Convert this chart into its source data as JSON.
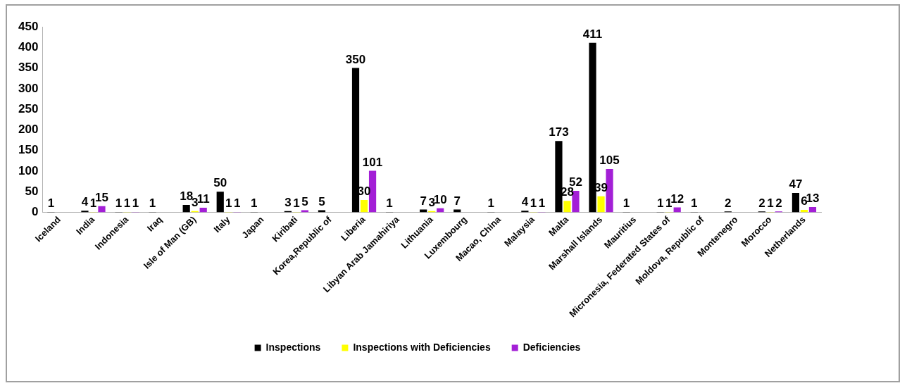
{
  "chart_data": {
    "type": "bar",
    "categories": [
      "Iceland",
      "India",
      "Indonesia",
      "Iraq",
      "Isle of Man (GB)",
      "Italy",
      "Japan",
      "Kiribati",
      "Korea,Republic of",
      "Liberia",
      "Libyan Arab Jamahiriya",
      "Lithuania",
      "Luxembourg",
      "Macao, China",
      "Malaysia",
      "Malta",
      "Marshall Islands",
      "Mauritius",
      "Micronesia, Federated States of",
      "Moldova, Republic of",
      "Montenegro",
      "Morocco",
      "Netherlands"
    ],
    "series": [
      {
        "name": "Inspections",
        "color": "#000000",
        "values": [
          1,
          4,
          1,
          1,
          18,
          50,
          1,
          3,
          5,
          350,
          1,
          7,
          7,
          1,
          4,
          173,
          411,
          1,
          1,
          1,
          2,
          2,
          47
        ]
      },
      {
        "name": "Inspections with Deficiencies",
        "color": "#ffff00",
        "values": [
          null,
          1,
          1,
          null,
          3,
          1,
          null,
          1,
          null,
          30,
          null,
          3,
          null,
          null,
          1,
          28,
          39,
          null,
          1,
          null,
          null,
          1,
          6
        ]
      },
      {
        "name": "Deficiencies",
        "color": "#a31fd6",
        "values": [
          null,
          15,
          1,
          null,
          11,
          1,
          null,
          5,
          null,
          101,
          null,
          10,
          null,
          null,
          1,
          52,
          105,
          null,
          12,
          null,
          null,
          2,
          13
        ]
      }
    ],
    "ylim": [
      0,
      450
    ],
    "yticks": [
      0,
      50,
      100,
      150,
      200,
      250,
      300,
      350,
      400,
      450
    ],
    "grid": false,
    "legend": "bottom",
    "data_labels": true
  }
}
